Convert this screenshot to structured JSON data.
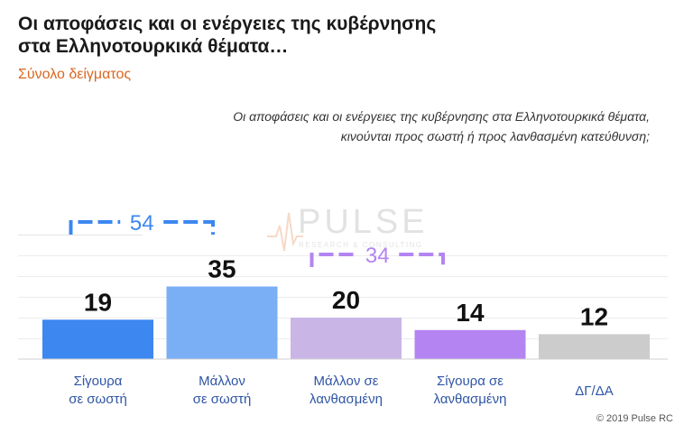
{
  "title_line1": "Οι αποφάσεις και οι ενέργειες της κυβέρνησης",
  "title_line2": "στα Ελληνοτουρκικά θέματα…",
  "subtitle": "Σύνολο δείγματος",
  "question_line1": "Οι αποφάσεις και οι ενέργειες της κυβέρνησης στα Ελληνοτουρκικά θέματα,",
  "question_line2": "κινούνται προς σωστή ή προς λανθασμένη κατεύθυνση;",
  "watermark": {
    "brand": "PULSE",
    "tagline": "RESEARCH & CONSULTING"
  },
  "credit": "© 2019 Pulse RC",
  "chart_data": {
    "type": "bar",
    "categories": [
      [
        "Σίγουρα",
        "σε σωστή"
      ],
      [
        "Μάλλον",
        "σε σωστή"
      ],
      [
        "Μάλλον σε",
        "λανθασμένη"
      ],
      [
        "Σίγουρα σε",
        "λανθασμένη"
      ],
      [
        "ΔΓ/ΔΑ"
      ]
    ],
    "values": [
      19,
      35,
      20,
      14,
      12
    ],
    "colors": [
      "#3c87f0",
      "#7aaff5",
      "#c9b6e6",
      "#b384f2",
      "#cccccc"
    ],
    "ylim": [
      0,
      65
    ],
    "grid": true,
    "brackets": [
      {
        "label": "54",
        "from": 0,
        "to": 1,
        "color": "#3c87f0"
      },
      {
        "label": "34",
        "from": 2,
        "to": 3,
        "color": "#b384f2"
      }
    ]
  }
}
